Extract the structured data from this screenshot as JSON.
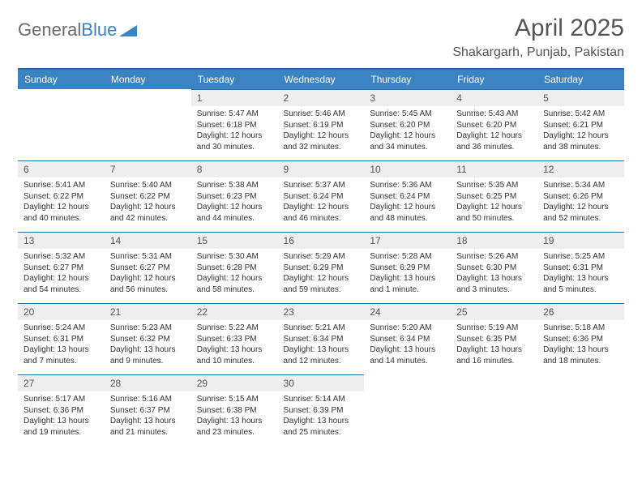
{
  "logo": {
    "text1": "General",
    "text2": "Blue"
  },
  "title": "April 2025",
  "location": "Shakargarh, Punjab, Pakistan",
  "theme": {
    "header_bg": "#3a84c4",
    "header_fg": "#ffffff",
    "border": "#2b6aa0",
    "daynum_bg": "#eeeeee",
    "text": "#555555",
    "body_font_size": 10,
    "title_font_size": 30
  },
  "weekdays": [
    "Sunday",
    "Monday",
    "Tuesday",
    "Wednesday",
    "Thursday",
    "Friday",
    "Saturday"
  ],
  "cells": [
    {
      "n": "",
      "sr": "",
      "ss": "",
      "dl": ""
    },
    {
      "n": "",
      "sr": "",
      "ss": "",
      "dl": ""
    },
    {
      "n": "1",
      "sr": "Sunrise: 5:47 AM",
      "ss": "Sunset: 6:18 PM",
      "dl": "Daylight: 12 hours and 30 minutes."
    },
    {
      "n": "2",
      "sr": "Sunrise: 5:46 AM",
      "ss": "Sunset: 6:19 PM",
      "dl": "Daylight: 12 hours and 32 minutes."
    },
    {
      "n": "3",
      "sr": "Sunrise: 5:45 AM",
      "ss": "Sunset: 6:20 PM",
      "dl": "Daylight: 12 hours and 34 minutes."
    },
    {
      "n": "4",
      "sr": "Sunrise: 5:43 AM",
      "ss": "Sunset: 6:20 PM",
      "dl": "Daylight: 12 hours and 36 minutes."
    },
    {
      "n": "5",
      "sr": "Sunrise: 5:42 AM",
      "ss": "Sunset: 6:21 PM",
      "dl": "Daylight: 12 hours and 38 minutes."
    },
    {
      "n": "6",
      "sr": "Sunrise: 5:41 AM",
      "ss": "Sunset: 6:22 PM",
      "dl": "Daylight: 12 hours and 40 minutes."
    },
    {
      "n": "7",
      "sr": "Sunrise: 5:40 AM",
      "ss": "Sunset: 6:22 PM",
      "dl": "Daylight: 12 hours and 42 minutes."
    },
    {
      "n": "8",
      "sr": "Sunrise: 5:38 AM",
      "ss": "Sunset: 6:23 PM",
      "dl": "Daylight: 12 hours and 44 minutes."
    },
    {
      "n": "9",
      "sr": "Sunrise: 5:37 AM",
      "ss": "Sunset: 6:24 PM",
      "dl": "Daylight: 12 hours and 46 minutes."
    },
    {
      "n": "10",
      "sr": "Sunrise: 5:36 AM",
      "ss": "Sunset: 6:24 PM",
      "dl": "Daylight: 12 hours and 48 minutes."
    },
    {
      "n": "11",
      "sr": "Sunrise: 5:35 AM",
      "ss": "Sunset: 6:25 PM",
      "dl": "Daylight: 12 hours and 50 minutes."
    },
    {
      "n": "12",
      "sr": "Sunrise: 5:34 AM",
      "ss": "Sunset: 6:26 PM",
      "dl": "Daylight: 12 hours and 52 minutes."
    },
    {
      "n": "13",
      "sr": "Sunrise: 5:32 AM",
      "ss": "Sunset: 6:27 PM",
      "dl": "Daylight: 12 hours and 54 minutes."
    },
    {
      "n": "14",
      "sr": "Sunrise: 5:31 AM",
      "ss": "Sunset: 6:27 PM",
      "dl": "Daylight: 12 hours and 56 minutes."
    },
    {
      "n": "15",
      "sr": "Sunrise: 5:30 AM",
      "ss": "Sunset: 6:28 PM",
      "dl": "Daylight: 12 hours and 58 minutes."
    },
    {
      "n": "16",
      "sr": "Sunrise: 5:29 AM",
      "ss": "Sunset: 6:29 PM",
      "dl": "Daylight: 12 hours and 59 minutes."
    },
    {
      "n": "17",
      "sr": "Sunrise: 5:28 AM",
      "ss": "Sunset: 6:29 PM",
      "dl": "Daylight: 13 hours and 1 minute."
    },
    {
      "n": "18",
      "sr": "Sunrise: 5:26 AM",
      "ss": "Sunset: 6:30 PM",
      "dl": "Daylight: 13 hours and 3 minutes."
    },
    {
      "n": "19",
      "sr": "Sunrise: 5:25 AM",
      "ss": "Sunset: 6:31 PM",
      "dl": "Daylight: 13 hours and 5 minutes."
    },
    {
      "n": "20",
      "sr": "Sunrise: 5:24 AM",
      "ss": "Sunset: 6:31 PM",
      "dl": "Daylight: 13 hours and 7 minutes."
    },
    {
      "n": "21",
      "sr": "Sunrise: 5:23 AM",
      "ss": "Sunset: 6:32 PM",
      "dl": "Daylight: 13 hours and 9 minutes."
    },
    {
      "n": "22",
      "sr": "Sunrise: 5:22 AM",
      "ss": "Sunset: 6:33 PM",
      "dl": "Daylight: 13 hours and 10 minutes."
    },
    {
      "n": "23",
      "sr": "Sunrise: 5:21 AM",
      "ss": "Sunset: 6:34 PM",
      "dl": "Daylight: 13 hours and 12 minutes."
    },
    {
      "n": "24",
      "sr": "Sunrise: 5:20 AM",
      "ss": "Sunset: 6:34 PM",
      "dl": "Daylight: 13 hours and 14 minutes."
    },
    {
      "n": "25",
      "sr": "Sunrise: 5:19 AM",
      "ss": "Sunset: 6:35 PM",
      "dl": "Daylight: 13 hours and 16 minutes."
    },
    {
      "n": "26",
      "sr": "Sunrise: 5:18 AM",
      "ss": "Sunset: 6:36 PM",
      "dl": "Daylight: 13 hours and 18 minutes."
    },
    {
      "n": "27",
      "sr": "Sunrise: 5:17 AM",
      "ss": "Sunset: 6:36 PM",
      "dl": "Daylight: 13 hours and 19 minutes."
    },
    {
      "n": "28",
      "sr": "Sunrise: 5:16 AM",
      "ss": "Sunset: 6:37 PM",
      "dl": "Daylight: 13 hours and 21 minutes."
    },
    {
      "n": "29",
      "sr": "Sunrise: 5:15 AM",
      "ss": "Sunset: 6:38 PM",
      "dl": "Daylight: 13 hours and 23 minutes."
    },
    {
      "n": "30",
      "sr": "Sunrise: 5:14 AM",
      "ss": "Sunset: 6:39 PM",
      "dl": "Daylight: 13 hours and 25 minutes."
    },
    {
      "n": "",
      "sr": "",
      "ss": "",
      "dl": ""
    },
    {
      "n": "",
      "sr": "",
      "ss": "",
      "dl": ""
    },
    {
      "n": "",
      "sr": "",
      "ss": "",
      "dl": ""
    }
  ]
}
